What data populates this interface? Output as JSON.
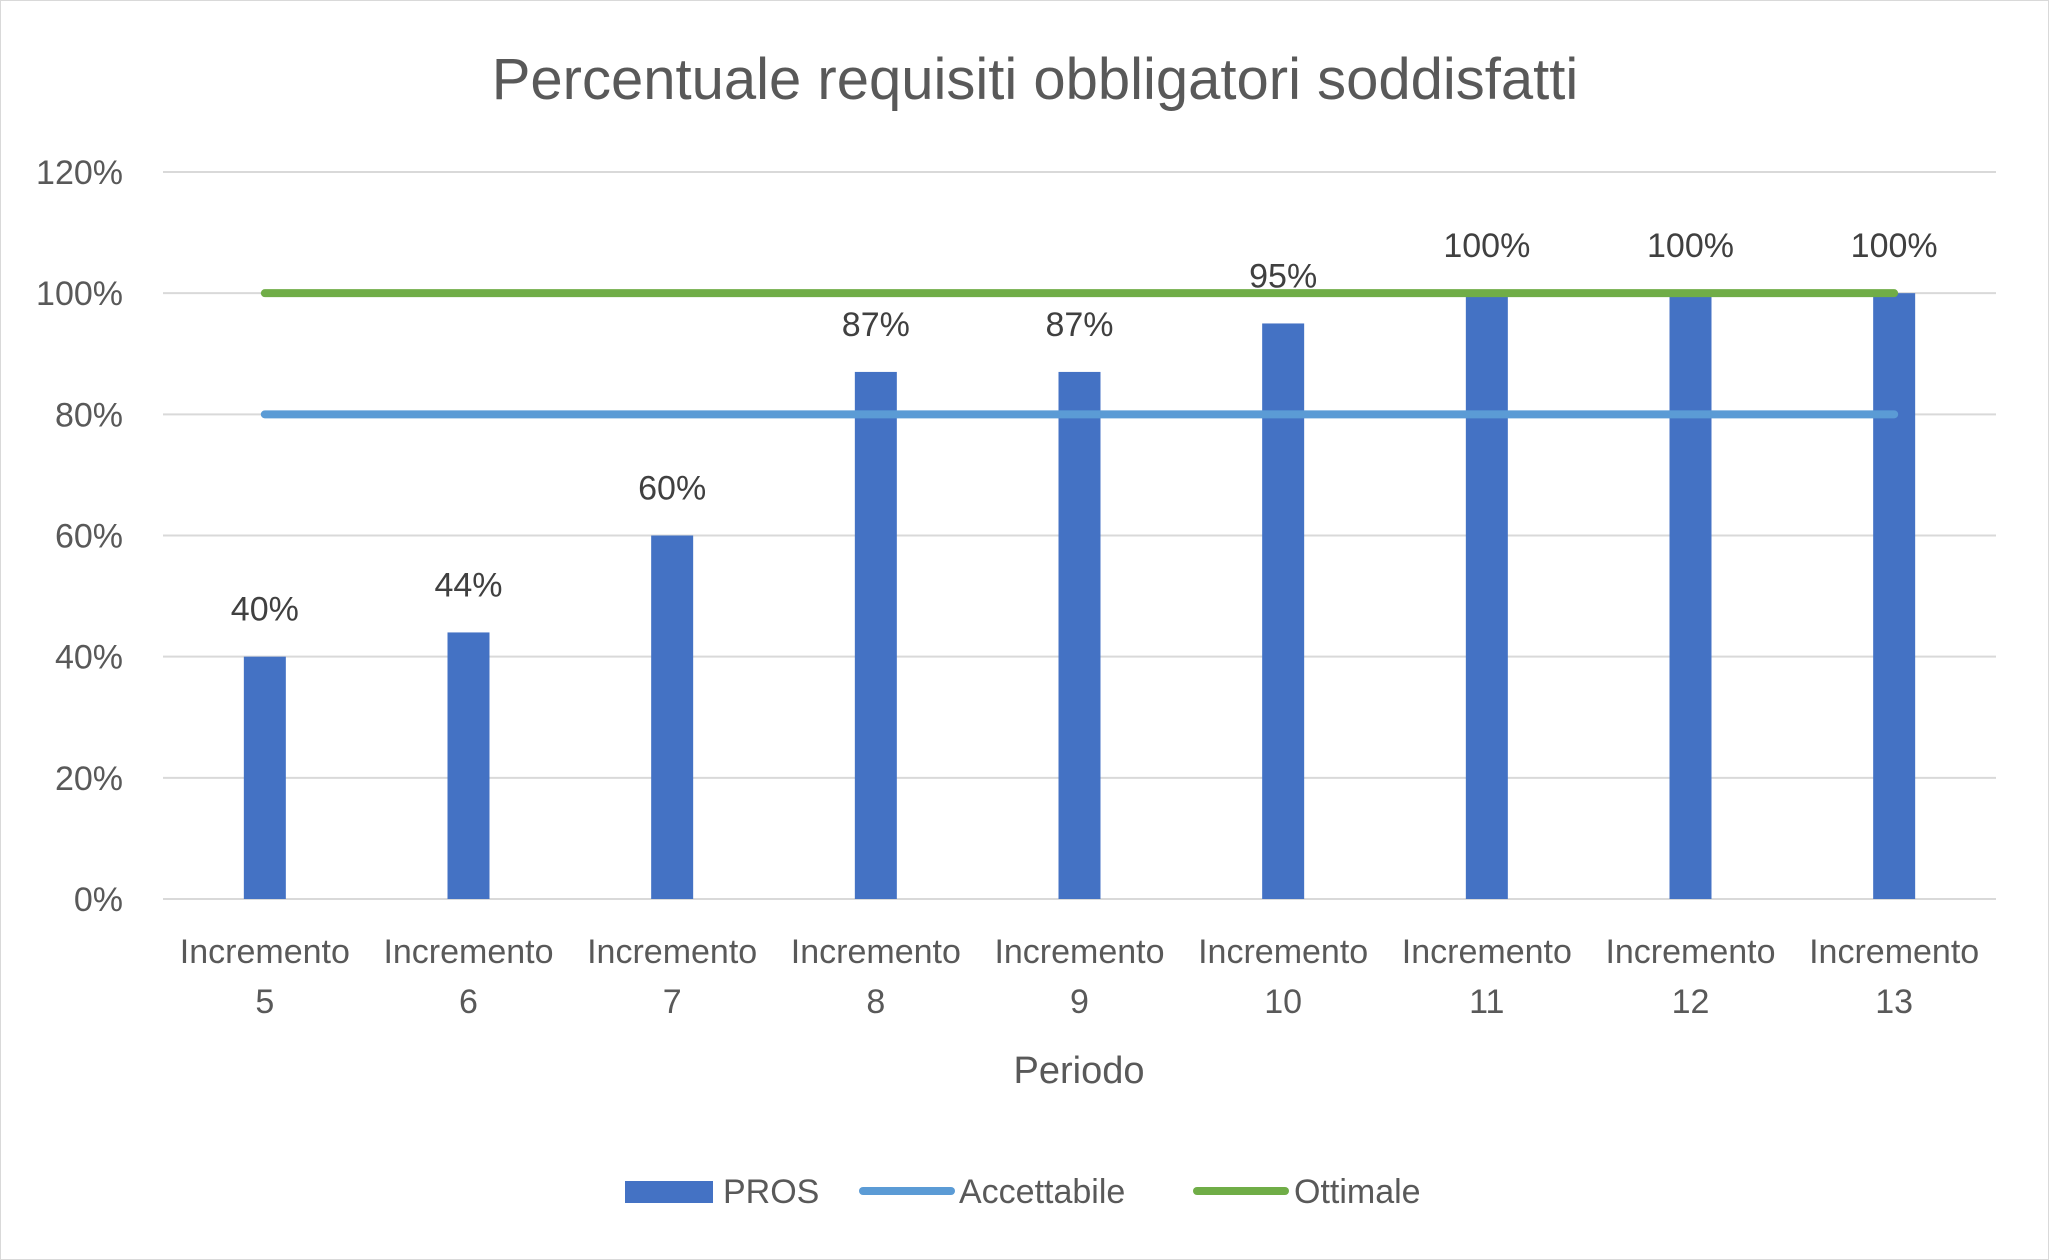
{
  "chart_data": {
    "type": "bar",
    "title": "Percentuale requisiti obbligatori soddisfatti",
    "xlabel": "Periodo",
    "ylabel": "",
    "ylim": [
      0,
      1.2
    ],
    "yticks": [
      0,
      0.2,
      0.4,
      0.6,
      0.8,
      1.0,
      1.2
    ],
    "ytick_labels": [
      "0%",
      "20%",
      "40%",
      "60%",
      "80%",
      "100%",
      "120%"
    ],
    "categories": [
      [
        "Incremento",
        "5"
      ],
      [
        "Incremento",
        "6"
      ],
      [
        "Incremento",
        "7"
      ],
      [
        "Incremento",
        "8"
      ],
      [
        "Incremento",
        "9"
      ],
      [
        "Incremento",
        "10"
      ],
      [
        "Incremento",
        "11"
      ],
      [
        "Incremento",
        "12"
      ],
      [
        "Incremento",
        "13"
      ]
    ],
    "grid": true,
    "legend_position": "bottom",
    "series": [
      {
        "name": "PROS",
        "kind": "bar",
        "color": "#4472c4",
        "values": [
          0.4,
          0.44,
          0.6,
          0.87,
          0.87,
          0.95,
          1.0,
          1.0,
          1.0
        ],
        "data_labels": [
          "40%",
          "44%",
          "60%",
          "87%",
          "87%",
          "95%",
          "100%",
          "100%",
          "100%"
        ]
      },
      {
        "name": "Accettabile",
        "kind": "line",
        "color": "#5b9bd5",
        "values": [
          0.8,
          0.8,
          0.8,
          0.8,
          0.8,
          0.8,
          0.8,
          0.8,
          0.8
        ]
      },
      {
        "name": "Ottimale",
        "kind": "line",
        "color": "#70ad47",
        "values": [
          1.0,
          1.0,
          1.0,
          1.0,
          1.0,
          1.0,
          1.0,
          1.0,
          1.0
        ]
      }
    ]
  }
}
